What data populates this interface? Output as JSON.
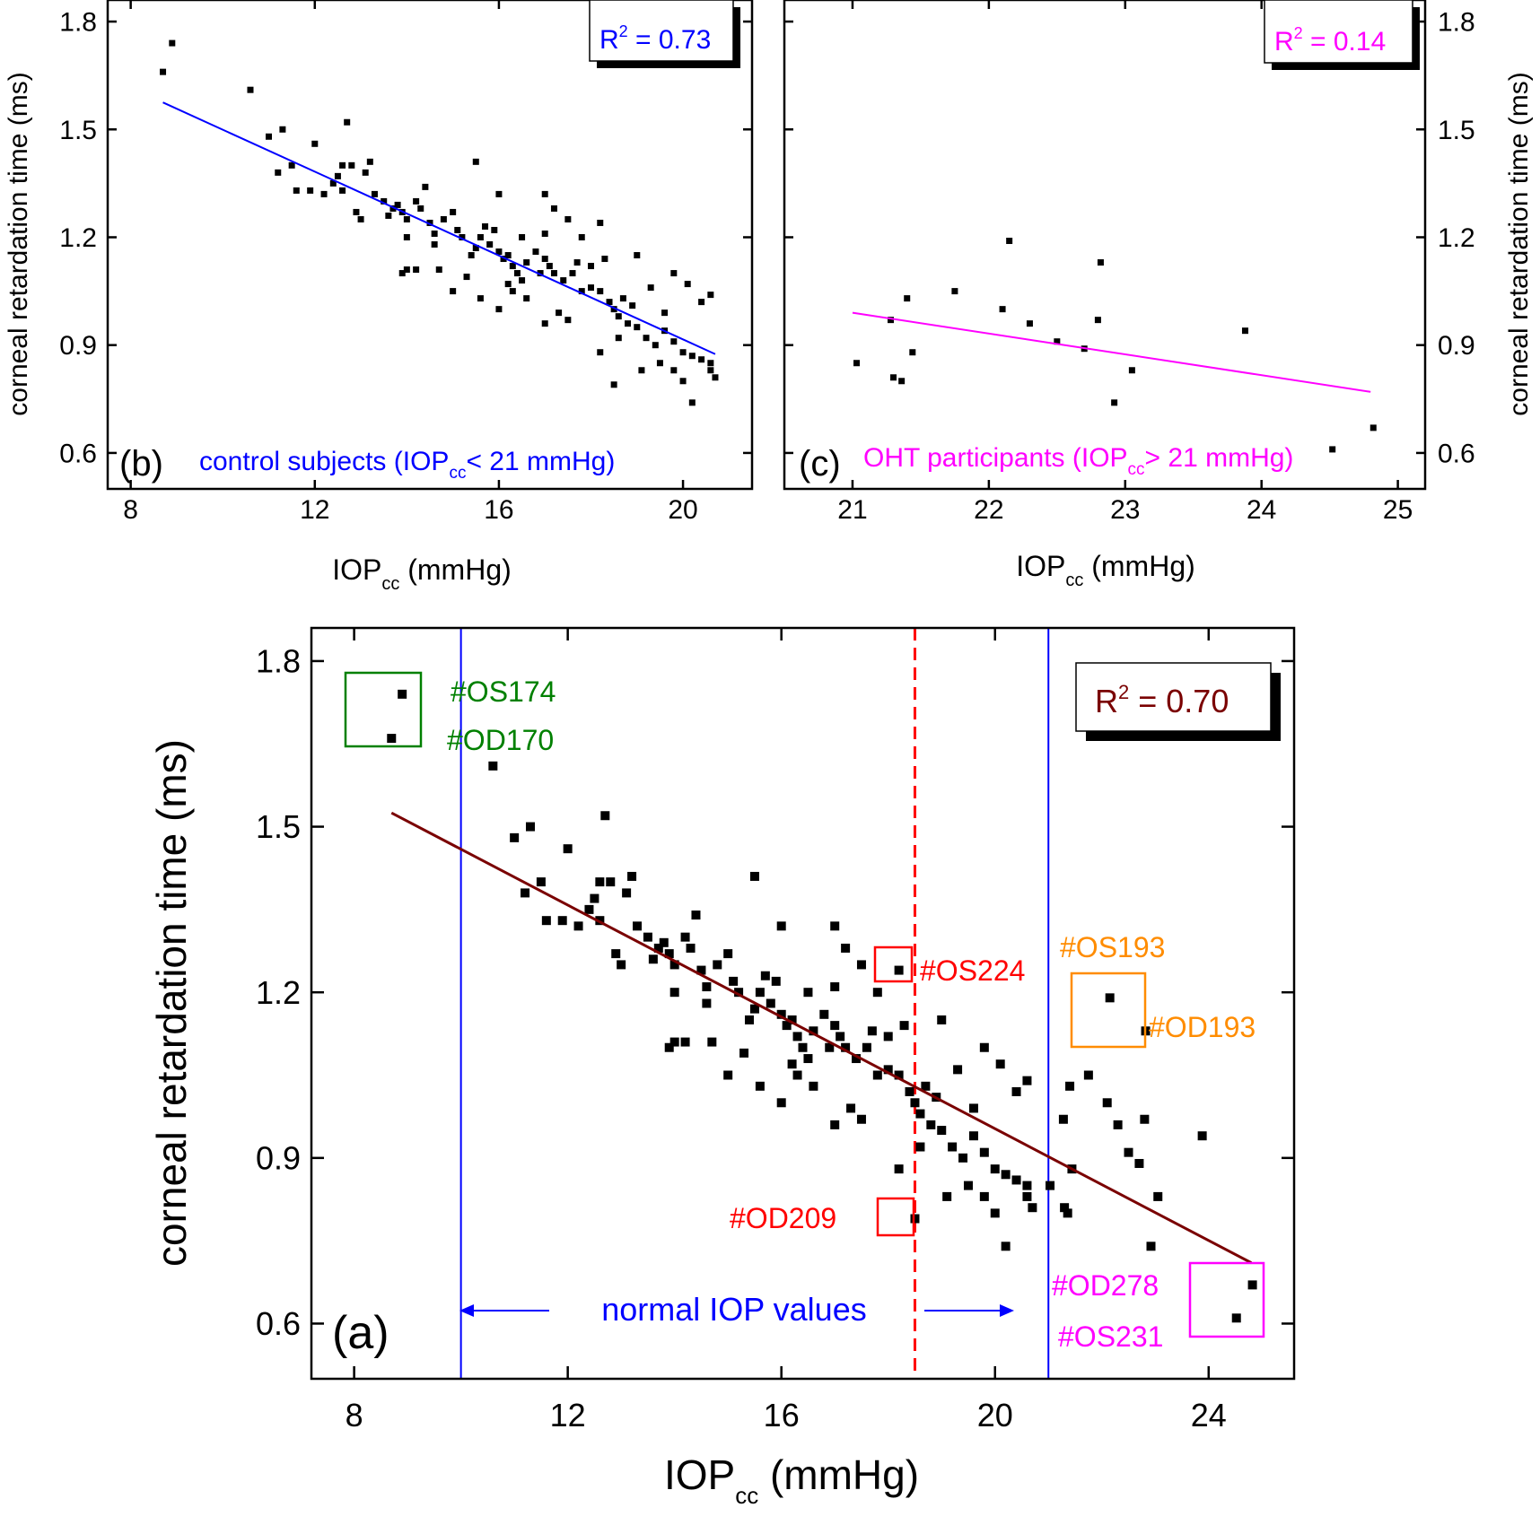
{
  "colors": {
    "axis": "#000000",
    "points": "#000000",
    "fit_b": "#0000ff",
    "fit_c": "#ff00ff",
    "fit_a": "#7a0000",
    "normal_line": "#0000ff",
    "mean_line": "#ff0000",
    "green": "#008000",
    "orange": "#ff8c00",
    "red": "#ff0000",
    "magenta": "#ff00ff",
    "blue": "#0000ff"
  },
  "chart_data": [
    {
      "id": "b",
      "type": "scatter",
      "panel_label": "(b)",
      "caption": "control subjects (IOP",
      "caption_sub": "cc",
      "caption_end": "< 21 mmHg)",
      "xlabel": "IOP",
      "xlabel_sub": "cc",
      "xlabel_unit": " (mmHg)",
      "ylabel": "corneal retardation time (ms)",
      "xlim": [
        7.5,
        21.5
      ],
      "ylim": [
        0.5,
        1.86
      ],
      "xticks": [
        "8",
        "12",
        "16",
        "20"
      ],
      "yticks": [
        "0.6",
        "0.9",
        "1.2",
        "1.5",
        "1.8"
      ],
      "r2_label": "R",
      "r2_sup": "2",
      "r2_value": " = 0.73",
      "fit": {
        "x1": 8.7,
        "y1": 1.575,
        "x2": 20.7,
        "y2": 0.875
      },
      "points": [
        [
          8.7,
          1.66
        ],
        [
          8.9,
          1.74
        ],
        [
          10.6,
          1.61
        ],
        [
          11.0,
          1.48
        ],
        [
          11.3,
          1.5
        ],
        [
          11.2,
          1.38
        ],
        [
          11.5,
          1.4
        ],
        [
          11.6,
          1.33
        ],
        [
          12.0,
          1.46
        ],
        [
          12.2,
          1.32
        ],
        [
          12.4,
          1.35
        ],
        [
          12.5,
          1.37
        ],
        [
          12.6,
          1.4
        ],
        [
          12.6,
          1.33
        ],
        [
          12.7,
          1.52
        ],
        [
          12.8,
          1.4
        ],
        [
          13.0,
          1.25
        ],
        [
          13.1,
          1.38
        ],
        [
          13.2,
          1.41
        ],
        [
          13.3,
          1.32
        ],
        [
          13.6,
          1.26
        ],
        [
          13.7,
          1.28
        ],
        [
          13.8,
          1.29
        ],
        [
          13.9,
          1.27
        ],
        [
          14.0,
          1.25
        ],
        [
          14.0,
          1.2
        ],
        [
          14.2,
          1.3
        ],
        [
          14.3,
          1.28
        ],
        [
          14.4,
          1.34
        ],
        [
          14.5,
          1.24
        ],
        [
          14.6,
          1.18
        ],
        [
          14.7,
          1.11
        ],
        [
          14.8,
          1.25
        ],
        [
          15.0,
          1.27
        ],
        [
          15.1,
          1.22
        ],
        [
          15.2,
          1.2
        ],
        [
          15.4,
          1.15
        ],
        [
          15.5,
          1.17
        ],
        [
          15.6,
          1.2
        ],
        [
          15.7,
          1.23
        ],
        [
          15.8,
          1.18
        ],
        [
          16.0,
          1.16
        ],
        [
          16.1,
          1.14
        ],
        [
          16.2,
          1.15
        ],
        [
          16.3,
          1.12
        ],
        [
          16.4,
          1.1
        ],
        [
          16.5,
          1.08
        ],
        [
          16.6,
          1.13
        ],
        [
          16.8,
          1.16
        ],
        [
          17.0,
          1.14
        ],
        [
          17.1,
          1.12
        ],
        [
          17.2,
          1.1
        ],
        [
          17.4,
          1.08
        ],
        [
          17.6,
          1.1
        ],
        [
          17.8,
          1.05
        ],
        [
          18.0,
          1.06
        ],
        [
          18.2,
          1.05
        ],
        [
          18.4,
          1.02
        ],
        [
          18.5,
          1.0
        ],
        [
          18.6,
          0.98
        ],
        [
          18.8,
          0.96
        ],
        [
          19.0,
          0.95
        ],
        [
          19.2,
          0.92
        ],
        [
          19.4,
          0.9
        ],
        [
          19.6,
          0.94
        ],
        [
          19.8,
          0.91
        ],
        [
          20.0,
          0.88
        ],
        [
          20.2,
          0.87
        ],
        [
          20.4,
          0.86
        ],
        [
          20.6,
          0.85
        ],
        [
          20.7,
          0.81
        ],
        [
          20.6,
          0.83
        ],
        [
          20.2,
          0.74
        ],
        [
          18.5,
          0.79
        ],
        [
          15.5,
          1.41
        ],
        [
          16.0,
          1.32
        ],
        [
          17.0,
          1.32
        ],
        [
          17.2,
          1.28
        ],
        [
          18.2,
          1.24
        ],
        [
          17.5,
          1.25
        ],
        [
          16.5,
          1.2
        ],
        [
          17.0,
          1.21
        ],
        [
          17.8,
          1.2
        ],
        [
          18.0,
          1.12
        ],
        [
          19.0,
          1.15
        ],
        [
          19.8,
          1.1
        ],
        [
          20.1,
          1.07
        ],
        [
          20.4,
          1.02
        ],
        [
          20.6,
          1.04
        ],
        [
          14.2,
          1.11
        ],
        [
          14.0,
          1.11
        ],
        [
          13.9,
          1.1
        ],
        [
          15.0,
          1.05
        ],
        [
          15.6,
          1.03
        ],
        [
          16.0,
          1.0
        ],
        [
          16.3,
          1.05
        ],
        [
          16.6,
          1.03
        ],
        [
          17.0,
          0.96
        ],
        [
          17.5,
          0.97
        ],
        [
          18.6,
          0.92
        ],
        [
          19.1,
          0.83
        ],
        [
          18.2,
          0.88
        ],
        [
          19.5,
          0.85
        ],
        [
          19.8,
          0.83
        ],
        [
          20.0,
          0.8
        ],
        [
          15.9,
          1.22
        ],
        [
          16.9,
          1.1
        ],
        [
          17.7,
          1.13
        ],
        [
          18.3,
          1.14
        ],
        [
          19.3,
          1.06
        ],
        [
          19.6,
          0.99
        ],
        [
          14.6,
          1.21
        ],
        [
          13.5,
          1.3
        ],
        [
          12.9,
          1.27
        ],
        [
          11.9,
          1.33
        ],
        [
          15.3,
          1.09
        ],
        [
          16.2,
          1.07
        ],
        [
          18.7,
          1.03
        ],
        [
          17.3,
          0.99
        ],
        [
          18.9,
          1.01
        ]
      ]
    },
    {
      "id": "c",
      "type": "scatter",
      "panel_label": "(c)",
      "caption": "OHT participants (IOP",
      "caption_sub": "cc",
      "caption_end": "> 21 mmHg)",
      "xlabel": "IOP",
      "xlabel_sub": "cc",
      "xlabel_unit": " (mmHg)",
      "ylabel": "corneal retardation time (ms)",
      "xlim": [
        20.5,
        25.2
      ],
      "ylim": [
        0.5,
        1.86
      ],
      "xticks": [
        "21",
        "22",
        "23",
        "24",
        "25"
      ],
      "yticks": [
        "0.6",
        "0.9",
        "1.2",
        "1.5",
        "1.8"
      ],
      "r2_label": "R",
      "r2_sup": "2",
      "r2_value": " = 0.14",
      "fit": {
        "x1": 21.0,
        "y1": 0.99,
        "x2": 24.8,
        "y2": 0.77
      },
      "points": [
        [
          21.03,
          0.85
        ],
        [
          21.28,
          0.97
        ],
        [
          21.3,
          0.81
        ],
        [
          21.36,
          0.8
        ],
        [
          21.4,
          1.03
        ],
        [
          21.44,
          0.88
        ],
        [
          21.75,
          1.05
        ],
        [
          22.1,
          1.0
        ],
        [
          22.15,
          1.19
        ],
        [
          22.3,
          0.96
        ],
        [
          22.5,
          0.91
        ],
        [
          22.7,
          0.89
        ],
        [
          22.8,
          0.97
        ],
        [
          22.82,
          1.13
        ],
        [
          23.05,
          0.83
        ],
        [
          22.92,
          0.74
        ],
        [
          23.88,
          0.94
        ],
        [
          24.52,
          0.61
        ],
        [
          24.82,
          0.67
        ]
      ]
    },
    {
      "id": "a",
      "type": "scatter",
      "panel_label": "(a)",
      "xlabel": "IOP",
      "xlabel_sub": "cc",
      "xlabel_unit": " (mmHg)",
      "ylabel": "corneal retardation time (ms)",
      "xlim": [
        7.2,
        25.6
      ],
      "ylim": [
        0.5,
        1.86
      ],
      "xticks": [
        "8",
        "12",
        "16",
        "20",
        "24"
      ],
      "yticks": [
        "0.6",
        "0.9",
        "1.2",
        "1.5",
        "1.8"
      ],
      "r2_label": "R",
      "r2_sup": "2",
      "r2_value": " = 0.70",
      "fit": {
        "x1": 8.7,
        "y1": 1.525,
        "x2": 24.8,
        "y2": 0.71
      },
      "normal_range": [
        10.0,
        21.0
      ],
      "mean_iop": 18.5,
      "normal_label": "normal IOP values",
      "annotations": {
        "os174": "#OS174",
        "od170": "#OD170",
        "os224": "#OS224",
        "od209": "#OD209",
        "os193": "#OS193",
        "od193": "#OD193",
        "od278": "#OD278",
        "os231": "#OS231"
      }
    }
  ]
}
